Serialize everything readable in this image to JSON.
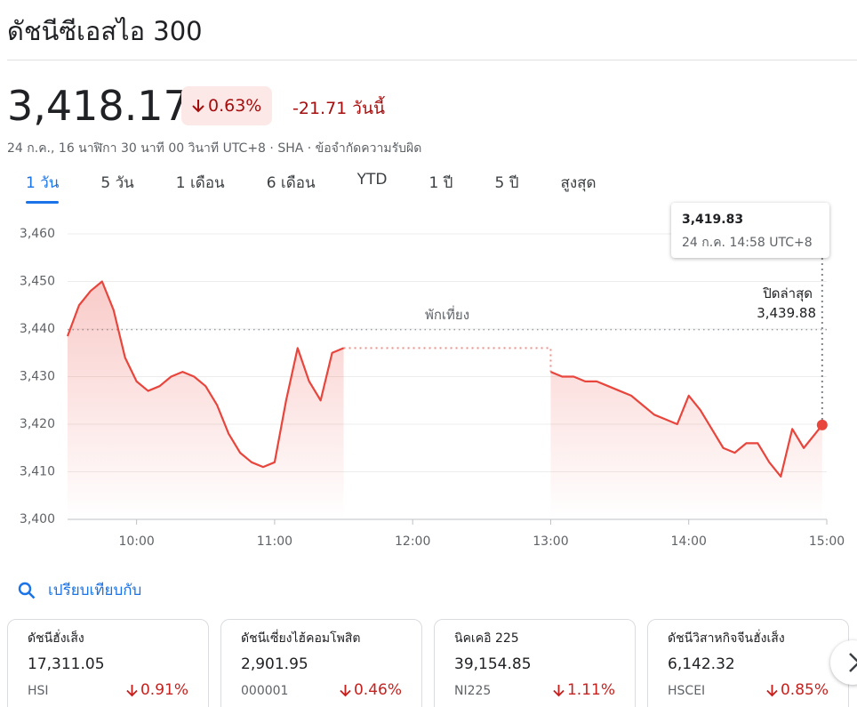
{
  "header": {
    "title": "ดัชนีซีเอสไอ 300"
  },
  "quote": {
    "price": "3,418.17",
    "change_percent": "0.63%",
    "change_today": "-21.71 วันนี้",
    "meta": "24 ก.ค., 16 นาฬิกา 30 นาที 00 วินาที UTC+8 · SHA · ข้อจำกัดความรับผิด"
  },
  "tabs": [
    "1 วัน",
    "5 วัน",
    "1 เดือน",
    "6 เดือน",
    "YTD",
    "1 ปี",
    "5 ปี",
    "สูงสุด"
  ],
  "chart_data": {
    "type": "line",
    "color": "#e8453c",
    "grid": true,
    "x": [
      9.5,
      9.5833,
      9.6667,
      9.75,
      9.8333,
      9.9167,
      10.0,
      10.0833,
      10.1667,
      10.25,
      10.3333,
      10.4167,
      10.5,
      10.5833,
      10.6667,
      10.75,
      10.8333,
      10.9167,
      11.0,
      11.0833,
      11.1667,
      11.25,
      11.3333,
      11.4167,
      11.5,
      12.25,
      13.0,
      13.0833,
      13.1667,
      13.25,
      13.3333,
      13.4167,
      13.5,
      13.5833,
      13.6667,
      13.75,
      13.8333,
      13.9167,
      14.0,
      14.0833,
      14.1667,
      14.25,
      14.3333,
      14.4167,
      14.5,
      14.5833,
      14.6667,
      14.75,
      14.8333,
      14.9167,
      14.9667
    ],
    "values": [
      3438.5,
      3445,
      3448,
      3450,
      3444,
      3434,
      3429,
      3427,
      3428,
      3430,
      3431,
      3430,
      3428,
      3424,
      3418,
      3414,
      3412,
      3411,
      3412,
      3425,
      3436,
      3429,
      3425,
      3435,
      3436,
      null,
      3431,
      3430,
      3430,
      3429,
      3429,
      3428,
      3427,
      3426,
      3424,
      3422,
      3421,
      3420,
      3426,
      3423,
      3419,
      3415,
      3414,
      3416,
      3416,
      3412,
      3409,
      3419,
      3415,
      3418,
      3419.83
    ],
    "xlim": [
      9.5,
      15
    ],
    "ylim": [
      3400,
      3460
    ],
    "xticks": [
      {
        "value": 10,
        "label": "10:00"
      },
      {
        "value": 11,
        "label": "11:00"
      },
      {
        "value": 12,
        "label": "12:00"
      },
      {
        "value": 13,
        "label": "13:00"
      },
      {
        "value": 14,
        "label": "14:00"
      },
      {
        "value": 15,
        "label": "15:00"
      }
    ],
    "yticks": [
      {
        "value": 3400,
        "label": "3,400"
      },
      {
        "value": 3410,
        "label": "3,410"
      },
      {
        "value": 3420,
        "label": "3,420"
      },
      {
        "value": 3430,
        "label": "3,430"
      },
      {
        "value": 3440,
        "label": "3,440"
      },
      {
        "value": 3450,
        "label": "3,450"
      },
      {
        "value": 3460,
        "label": "3,460"
      }
    ],
    "annotation": "พักเที่ยง",
    "previous_close": {
      "title": "ปิดล่าสุด",
      "value": 3439.88,
      "label": "3,439.88"
    },
    "tooltip": {
      "label": "3,419.83",
      "time": "24 ก.ค. 14:58 UTC+8"
    }
  },
  "compare": {
    "label": "เปรียบเทียบกับ",
    "cards": [
      {
        "name": "ดัชนีฮั่งเส็ง",
        "value": "17,311.05",
        "ticker": "HSI",
        "change": "0.91%"
      },
      {
        "name": "ดัชนีเซี่ยงไฮ้คอมโพสิต",
        "value": "2,901.95",
        "ticker": "000001",
        "change": "0.46%"
      },
      {
        "name": "นิคเคอิ 225",
        "value": "39,154.85",
        "ticker": "NI225",
        "change": "1.11%"
      },
      {
        "name": "ดัชนีวิสาหกิจจีนฮั่งเส็ง",
        "value": "6,142.32",
        "ticker": "HSCEI",
        "change": "0.85%"
      }
    ]
  }
}
